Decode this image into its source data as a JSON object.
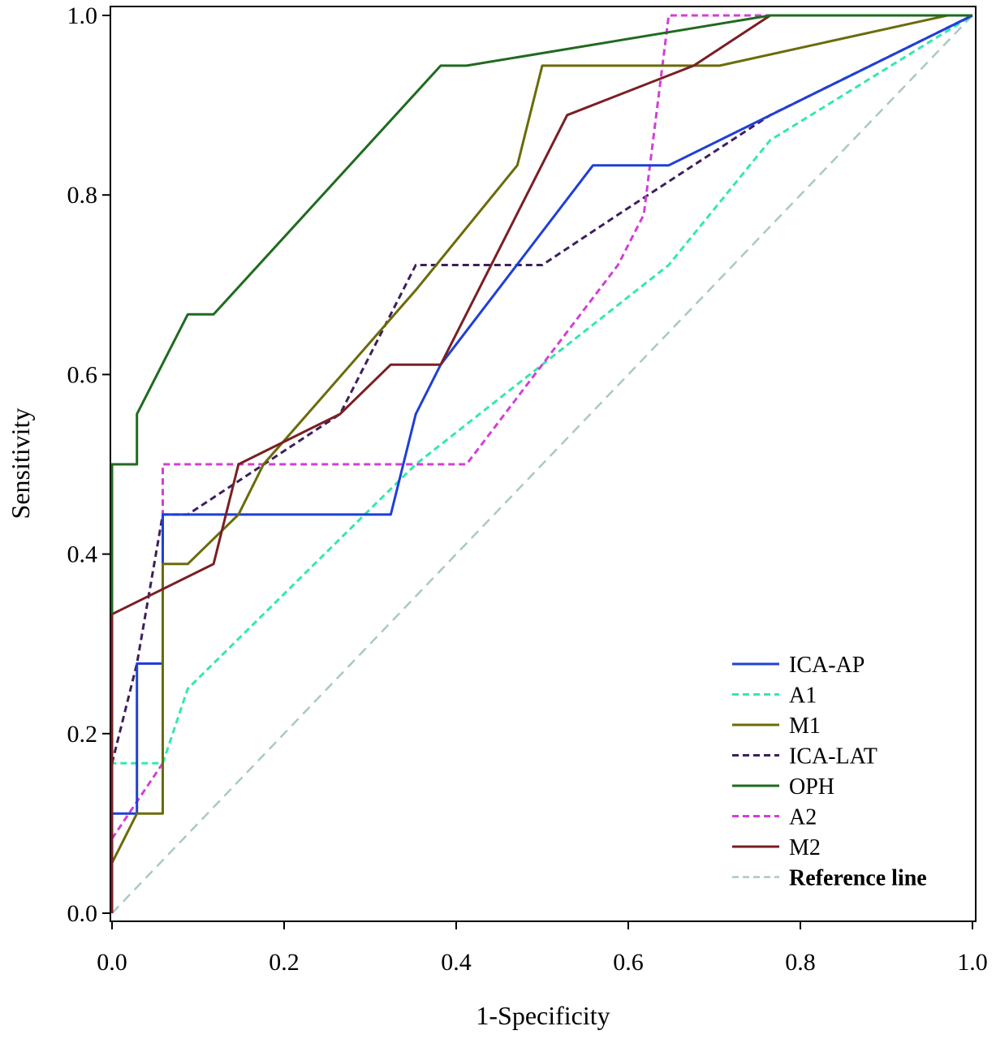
{
  "chart_data": {
    "type": "line",
    "title": "",
    "xlabel": "1-Specificity",
    "ylabel": "Sensitivity",
    "xlim": [
      0,
      1
    ],
    "ylim": [
      0,
      1
    ],
    "xticks": [
      "0.0",
      "0.2",
      "0.4",
      "0.6",
      "0.8",
      "1.0"
    ],
    "yticks": [
      "0.0",
      "0.2",
      "0.4",
      "0.6",
      "0.8",
      "1.0"
    ],
    "grid": false,
    "legend_position": "bottom-right",
    "series": [
      {
        "name": "ICA-AP",
        "color": "#1f3fd8",
        "dash": "solid",
        "points": [
          [
            0,
            0
          ],
          [
            0,
            0.111
          ],
          [
            0.029,
            0.111
          ],
          [
            0.029,
            0.278
          ],
          [
            0.059,
            0.278
          ],
          [
            0.059,
            0.444
          ],
          [
            0.324,
            0.444
          ],
          [
            0.353,
            0.556
          ],
          [
            0.382,
            0.611
          ],
          [
            0.559,
            0.833
          ],
          [
            0.647,
            0.833
          ],
          [
            1,
            1
          ]
        ]
      },
      {
        "name": "A1",
        "color": "#33e8b0",
        "dash": "dashed",
        "points": [
          [
            0,
            0
          ],
          [
            0,
            0.167
          ],
          [
            0.059,
            0.167
          ],
          [
            0.088,
            0.25
          ],
          [
            0.353,
            0.5
          ],
          [
            0.647,
            0.722
          ],
          [
            0.765,
            0.861
          ],
          [
            1,
            1
          ]
        ]
      },
      {
        "name": "M1",
        "color": "#6b6b0a",
        "dash": "solid",
        "points": [
          [
            0,
            0.056
          ],
          [
            0.029,
            0.111
          ],
          [
            0.059,
            0.111
          ],
          [
            0.059,
            0.389
          ],
          [
            0.088,
            0.389
          ],
          [
            0.147,
            0.444
          ],
          [
            0.176,
            0.5
          ],
          [
            0.353,
            0.694
          ],
          [
            0.471,
            0.833
          ],
          [
            0.5,
            0.944
          ],
          [
            0.706,
            0.944
          ],
          [
            0.971,
            1
          ],
          [
            1,
            1
          ]
        ]
      },
      {
        "name": "ICA-LAT",
        "color": "#3d1f5c",
        "dash": "dashed",
        "points": [
          [
            0,
            0.167
          ],
          [
            0.029,
            0.278
          ],
          [
            0.059,
            0.444
          ],
          [
            0.088,
            0.444
          ],
          [
            0.265,
            0.556
          ],
          [
            0.353,
            0.722
          ],
          [
            0.5,
            0.722
          ],
          [
            0.588,
            0.778
          ],
          [
            0.765,
            0.889
          ],
          [
            1,
            1
          ]
        ]
      },
      {
        "name": "OPH",
        "color": "#1f6b1f",
        "dash": "solid",
        "points": [
          [
            0,
            0.333
          ],
          [
            0,
            0.5
          ],
          [
            0.029,
            0.5
          ],
          [
            0.029,
            0.556
          ],
          [
            0.088,
            0.667
          ],
          [
            0.118,
            0.667
          ],
          [
            0.382,
            0.944
          ],
          [
            0.412,
            0.944
          ],
          [
            0.765,
            1
          ],
          [
            1,
            1
          ]
        ]
      },
      {
        "name": "A2",
        "color": "#d33ed8",
        "dash": "dashed",
        "points": [
          [
            0,
            0.083
          ],
          [
            0.059,
            0.167
          ],
          [
            0.059,
            0.5
          ],
          [
            0.412,
            0.5
          ],
          [
            0.588,
            0.722
          ],
          [
            0.618,
            0.778
          ],
          [
            0.647,
            1
          ],
          [
            0.765,
            1
          ],
          [
            1,
            1
          ]
        ]
      },
      {
        "name": "M2",
        "color": "#7a1f24",
        "dash": "solid",
        "points": [
          [
            0,
            0
          ],
          [
            0,
            0.333
          ],
          [
            0.118,
            0.389
          ],
          [
            0.147,
            0.5
          ],
          [
            0.265,
            0.556
          ],
          [
            0.324,
            0.611
          ],
          [
            0.382,
            0.611
          ],
          [
            0.529,
            0.889
          ],
          [
            0.676,
            0.944
          ],
          [
            0.765,
            1
          ],
          [
            1,
            1
          ]
        ]
      },
      {
        "name": "Reference line",
        "color": "#a9c9c4",
        "dash": "dashed",
        "points": [
          [
            0,
            0
          ],
          [
            1,
            1
          ]
        ]
      }
    ]
  }
}
